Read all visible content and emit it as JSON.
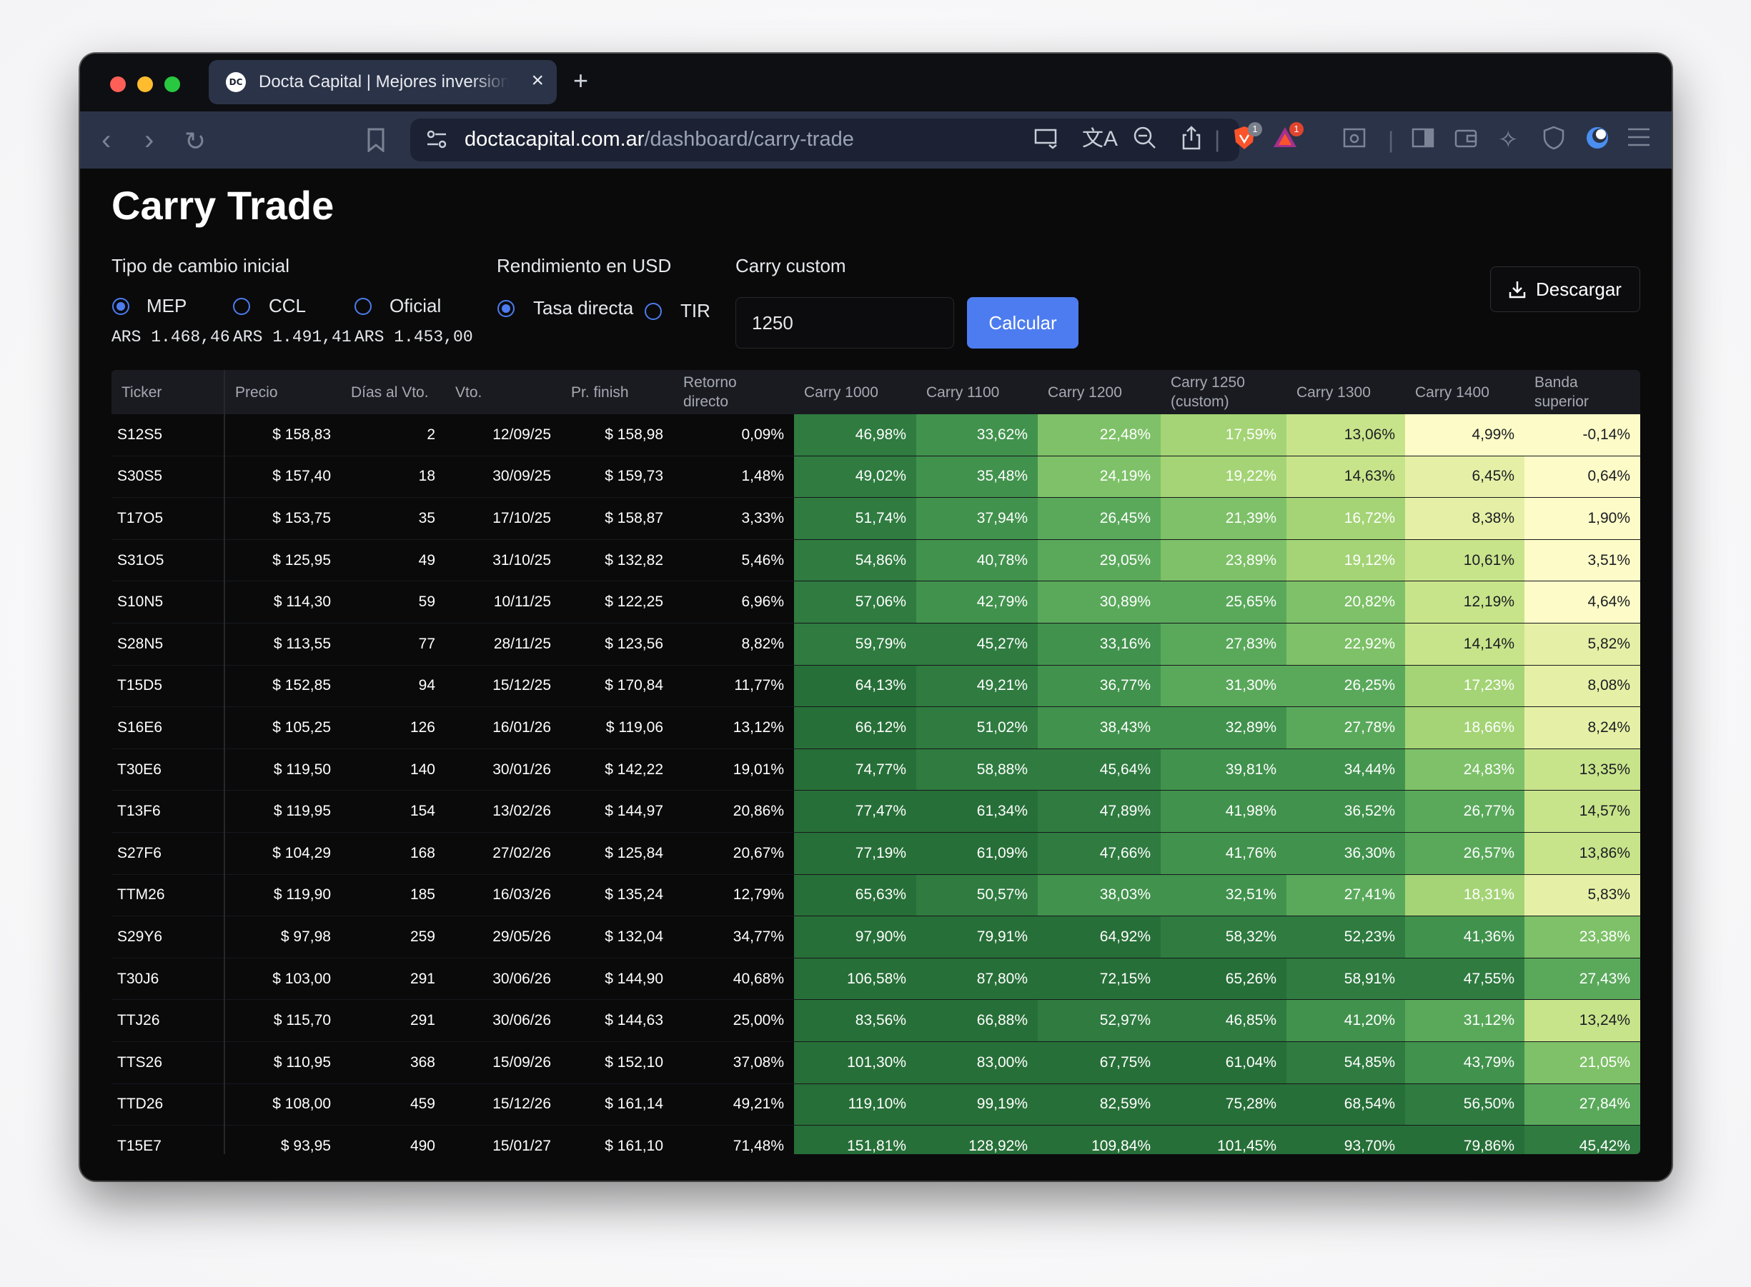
{
  "browser": {
    "tab_title": "Docta Capital | Mejores inversiones",
    "favicon_text": "DC",
    "url_domain": "doctacapital.com.ar",
    "url_path": "/dashboard/carry-trade",
    "brave_badge": "1",
    "rewards_badge": "1"
  },
  "page": {
    "title": "Carry Trade",
    "exchange": {
      "label": "Tipo de cambio inicial",
      "options": [
        "MEP",
        "CCL",
        "Oficial"
      ],
      "selected": "MEP",
      "rates": [
        "ARS 1.468,46",
        "ARS 1.491,41",
        "ARS 1.453,00"
      ]
    },
    "yield": {
      "label": "Rendimiento en USD",
      "options": [
        "Tasa directa",
        "TIR"
      ],
      "selected": "Tasa directa"
    },
    "custom": {
      "label": "Carry custom",
      "value": "1250",
      "button": "Calcular"
    },
    "download_label": "Descargar"
  },
  "table": {
    "headers": [
      {
        "l1": "Ticker",
        "l2": ""
      },
      {
        "l1": "Precio",
        "l2": ""
      },
      {
        "l1": "Días al Vto.",
        "l2": ""
      },
      {
        "l1": "Vto.",
        "l2": ""
      },
      {
        "l1": "Pr. finish",
        "l2": ""
      },
      {
        "l1": "Retorno",
        "l2": "directo"
      },
      {
        "l1": "Carry 1000",
        "l2": ""
      },
      {
        "l1": "Carry 1100",
        "l2": ""
      },
      {
        "l1": "Carry 1200",
        "l2": ""
      },
      {
        "l1": "Carry 1250",
        "l2": "(custom)"
      },
      {
        "l1": "Carry 1300",
        "l2": ""
      },
      {
        "l1": "Carry 1400",
        "l2": ""
      },
      {
        "l1": "Banda",
        "l2": "superior"
      }
    ],
    "rows": [
      [
        "S12S5",
        "$ 158,83",
        "2",
        "12/09/25",
        "$ 158,98",
        "0,09%",
        "46,98%",
        "33,62%",
        "22,48%",
        "17,59%",
        "13,06%",
        "4,99%",
        "-0,14%"
      ],
      [
        "S30S5",
        "$ 157,40",
        "18",
        "30/09/25",
        "$ 159,73",
        "1,48%",
        "49,02%",
        "35,48%",
        "24,19%",
        "19,22%",
        "14,63%",
        "6,45%",
        "0,64%"
      ],
      [
        "T17O5",
        "$ 153,75",
        "35",
        "17/10/25",
        "$ 158,87",
        "3,33%",
        "51,74%",
        "37,94%",
        "26,45%",
        "21,39%",
        "16,72%",
        "8,38%",
        "1,90%"
      ],
      [
        "S31O5",
        "$ 125,95",
        "49",
        "31/10/25",
        "$ 132,82",
        "5,46%",
        "54,86%",
        "40,78%",
        "29,05%",
        "23,89%",
        "19,12%",
        "10,61%",
        "3,51%"
      ],
      [
        "S10N5",
        "$ 114,30",
        "59",
        "10/11/25",
        "$ 122,25",
        "6,96%",
        "57,06%",
        "42,79%",
        "30,89%",
        "25,65%",
        "20,82%",
        "12,19%",
        "4,64%"
      ],
      [
        "S28N5",
        "$ 113,55",
        "77",
        "28/11/25",
        "$ 123,56",
        "8,82%",
        "59,79%",
        "45,27%",
        "33,16%",
        "27,83%",
        "22,92%",
        "14,14%",
        "5,82%"
      ],
      [
        "T15D5",
        "$ 152,85",
        "94",
        "15/12/25",
        "$ 170,84",
        "11,77%",
        "64,13%",
        "49,21%",
        "36,77%",
        "31,30%",
        "26,25%",
        "17,23%",
        "8,08%"
      ],
      [
        "S16E6",
        "$ 105,25",
        "126",
        "16/01/26",
        "$ 119,06",
        "13,12%",
        "66,12%",
        "51,02%",
        "38,43%",
        "32,89%",
        "27,78%",
        "18,66%",
        "8,24%"
      ],
      [
        "T30E6",
        "$ 119,50",
        "140",
        "30/01/26",
        "$ 142,22",
        "19,01%",
        "74,77%",
        "58,88%",
        "45,64%",
        "39,81%",
        "34,44%",
        "24,83%",
        "13,35%"
      ],
      [
        "T13F6",
        "$ 119,95",
        "154",
        "13/02/26",
        "$ 144,97",
        "20,86%",
        "77,47%",
        "61,34%",
        "47,89%",
        "41,98%",
        "36,52%",
        "26,77%",
        "14,57%"
      ],
      [
        "S27F6",
        "$ 104,29",
        "168",
        "27/02/26",
        "$ 125,84",
        "20,67%",
        "77,19%",
        "61,09%",
        "47,66%",
        "41,76%",
        "36,30%",
        "26,57%",
        "13,86%"
      ],
      [
        "TTM26",
        "$ 119,90",
        "185",
        "16/03/26",
        "$ 135,24",
        "12,79%",
        "65,63%",
        "50,57%",
        "38,03%",
        "32,51%",
        "27,41%",
        "18,31%",
        "5,83%"
      ],
      [
        "S29Y6",
        "$ 97,98",
        "259",
        "29/05/26",
        "$ 132,04",
        "34,77%",
        "97,90%",
        "79,91%",
        "64,92%",
        "58,32%",
        "52,23%",
        "41,36%",
        "23,38%"
      ],
      [
        "T30J6",
        "$ 103,00",
        "291",
        "30/06/26",
        "$ 144,90",
        "40,68%",
        "106,58%",
        "87,80%",
        "72,15%",
        "65,26%",
        "58,91%",
        "47,55%",
        "27,43%"
      ],
      [
        "TTJ26",
        "$ 115,70",
        "291",
        "30/06/26",
        "$ 144,63",
        "25,00%",
        "83,56%",
        "66,88%",
        "52,97%",
        "46,85%",
        "41,20%",
        "31,12%",
        "13,24%"
      ],
      [
        "TTS26",
        "$ 110,95",
        "368",
        "15/09/26",
        "$ 152,10",
        "37,08%",
        "101,30%",
        "83,00%",
        "67,75%",
        "61,04%",
        "54,85%",
        "43,79%",
        "21,05%"
      ],
      [
        "TTD26",
        "$ 108,00",
        "459",
        "15/12/26",
        "$ 161,14",
        "49,21%",
        "119,10%",
        "99,19%",
        "82,59%",
        "75,28%",
        "68,54%",
        "56,50%",
        "27,84%"
      ],
      [
        "T15E7",
        "$ 93,95",
        "490",
        "15/01/27",
        "$ 161,10",
        "71,48%",
        "151,81%",
        "128,92%",
        "109,84%",
        "101,45%",
        "93,70%",
        "79,86%",
        "45,42%"
      ]
    ]
  },
  "colors": {
    "accent": "#4d7cf0",
    "heat_scale": [
      "#fdfcc8",
      "#e5f0a6",
      "#c8e48b",
      "#a4d475",
      "#7ec168",
      "#5aa95b",
      "#41924d",
      "#2f7b40",
      "#276f38"
    ]
  },
  "icons": [
    "back-icon",
    "forward-icon",
    "reload-icon",
    "bookmark-icon",
    "site-settings-icon",
    "cast-icon",
    "translate-icon",
    "zoom-icon",
    "share-icon",
    "brave-shields-icon",
    "brave-rewards-icon",
    "reader-icon",
    "sidebar-icon",
    "wallet-icon",
    "leo-icon",
    "vpn-icon",
    "profile-icon",
    "menu-icon",
    "download-icon"
  ]
}
